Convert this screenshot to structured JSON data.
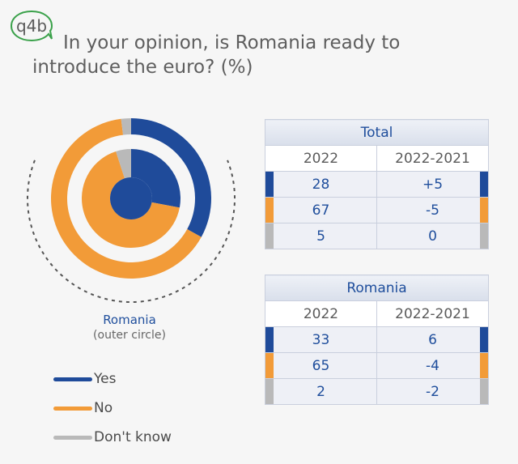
{
  "question_tag": "q4b",
  "title": {
    "line1": "In your opinion, is Romania ready to",
    "line2": "introduce the euro? (%)"
  },
  "colors": {
    "yes": "#1f4b9a",
    "no": "#f29b38",
    "dont_know": "#b9b9b9",
    "accent_green": "#3aa14a"
  },
  "chart_caption": {
    "name": "Romania",
    "sub": "(outer circle)"
  },
  "legend": [
    {
      "label": "Yes",
      "color": "#1f4b9a"
    },
    {
      "label": "No",
      "color": "#f29b38"
    },
    {
      "label": "Don't know",
      "color": "#b9b9b9"
    }
  ],
  "tables": [
    {
      "title": "Total",
      "col1": "2022",
      "col2": "2022-2021",
      "rows": [
        {
          "a": "28",
          "b": "+5",
          "color": "#1f4b9a"
        },
        {
          "a": "67",
          "b": "-5",
          "color": "#f29b38"
        },
        {
          "a": "5",
          "b": "0",
          "color": "#b9b9b9"
        }
      ]
    },
    {
      "title": "Romania",
      "col1": "2022",
      "col2": "2022-2021",
      "rows": [
        {
          "a": "33",
          "b": "6",
          "color": "#1f4b9a"
        },
        {
          "a": "65",
          "b": "-4",
          "color": "#f29b38"
        },
        {
          "a": "2",
          "b": "-2",
          "color": "#b9b9b9"
        }
      ]
    }
  ],
  "chart_data": {
    "type": "pie",
    "rings": [
      {
        "ring": "outer",
        "values": {
          "Yes": 33,
          "No": 65,
          "Don't know": 2
        }
      },
      {
        "ring": "inner",
        "values": {
          "Yes": 28,
          "No": 67,
          "Don't know": 5
        }
      }
    ],
    "categories": [
      "Yes",
      "No",
      "Don't know"
    ]
  }
}
